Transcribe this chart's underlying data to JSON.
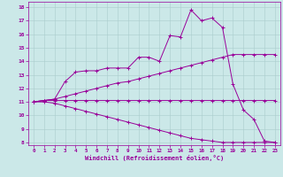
{
  "xlabel": "Windchill (Refroidissement éolien,°C)",
  "bg_color": "#cbe8e8",
  "line_color": "#990099",
  "grid_color": "#aacccc",
  "xlim": [
    -0.5,
    23.5
  ],
  "ylim": [
    7.8,
    18.4
  ],
  "yticks": [
    8,
    9,
    10,
    11,
    12,
    13,
    14,
    15,
    16,
    17,
    18
  ],
  "xticks": [
    0,
    1,
    2,
    3,
    4,
    5,
    6,
    7,
    8,
    9,
    10,
    11,
    12,
    13,
    14,
    15,
    16,
    17,
    18,
    19,
    20,
    21,
    22,
    23
  ],
  "lines": [
    {
      "x": [
        0,
        1,
        2,
        3,
        4,
        5,
        6,
        7,
        8,
        9,
        10,
        11,
        12,
        13,
        14,
        15,
        16,
        17,
        18,
        19,
        20,
        21,
        22,
        23
      ],
      "y": [
        11,
        11.1,
        11.1,
        11.1,
        11.1,
        11.1,
        11.1,
        11.1,
        11.1,
        11.1,
        11.1,
        11.1,
        11.1,
        11.1,
        11.1,
        11.1,
        11.1,
        11.1,
        11.1,
        11.1,
        11.1,
        11.1,
        11.1,
        11.1
      ]
    },
    {
      "x": [
        0,
        1,
        2,
        3,
        4,
        5,
        6,
        7,
        8,
        9,
        10,
        11,
        12,
        13,
        14,
        15,
        16,
        17,
        18,
        19,
        20,
        21,
        22,
        23
      ],
      "y": [
        11,
        11.1,
        11.2,
        12.5,
        13.2,
        13.3,
        13.3,
        13.5,
        13.5,
        13.5,
        14.3,
        14.3,
        14.0,
        15.9,
        15.8,
        17.8,
        17.0,
        17.2,
        16.5,
        12.3,
        10.4,
        9.7,
        8.1,
        8.0
      ]
    },
    {
      "x": [
        0,
        1,
        2,
        3,
        4,
        5,
        6,
        7,
        8,
        9,
        10,
        11,
        12,
        13,
        14,
        15,
        16,
        17,
        18,
        19,
        20,
        21,
        22,
        23
      ],
      "y": [
        11,
        11.1,
        11.2,
        11.4,
        11.6,
        11.8,
        12.0,
        12.2,
        12.4,
        12.5,
        12.7,
        12.9,
        13.1,
        13.3,
        13.5,
        13.7,
        13.9,
        14.1,
        14.3,
        14.5,
        14.5,
        14.5,
        14.5,
        14.5
      ]
    },
    {
      "x": [
        0,
        1,
        2,
        3,
        4,
        5,
        6,
        7,
        8,
        9,
        10,
        11,
        12,
        13,
        14,
        15,
        16,
        17,
        18,
        19,
        20,
        21,
        22,
        23
      ],
      "y": [
        11,
        11.0,
        10.9,
        10.7,
        10.5,
        10.3,
        10.1,
        9.9,
        9.7,
        9.5,
        9.3,
        9.1,
        8.9,
        8.7,
        8.5,
        8.3,
        8.2,
        8.1,
        8.0,
        8.0,
        8.0,
        8.0,
        8.0,
        8.0
      ]
    }
  ]
}
